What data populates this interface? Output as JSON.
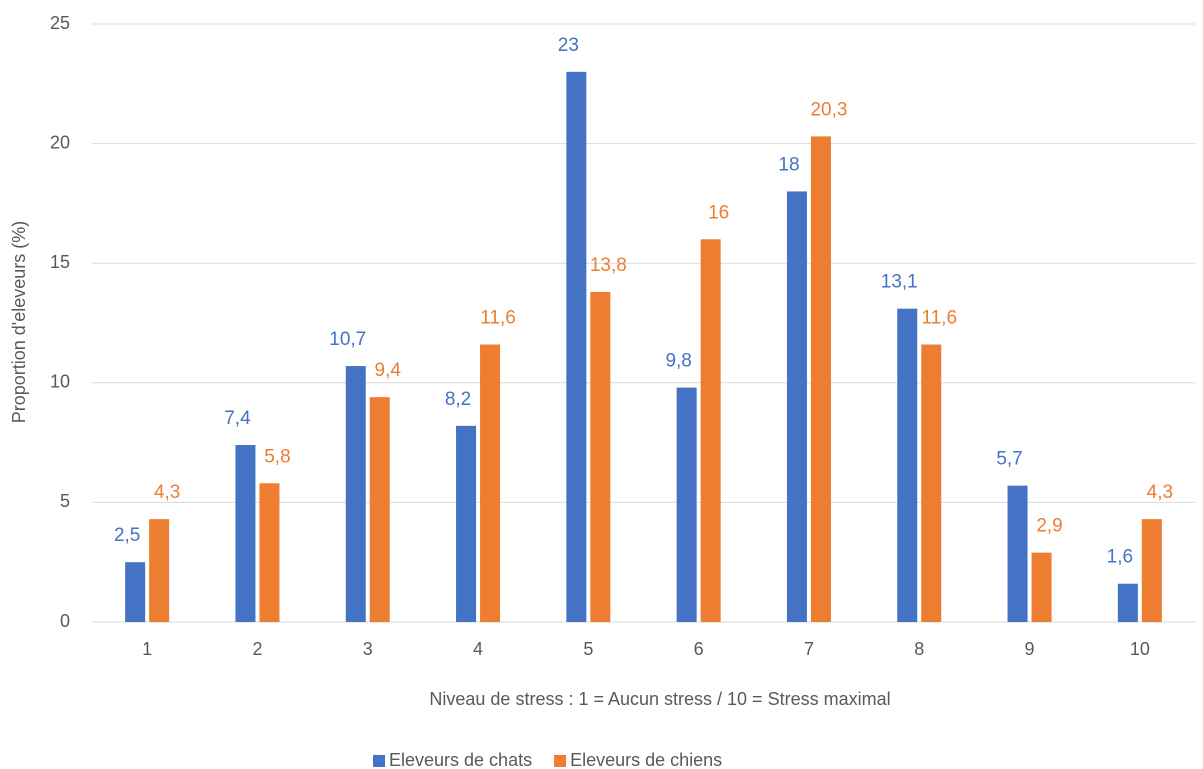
{
  "chart_data": {
    "type": "bar",
    "x_label": "Niveau de stress : 1 = Aucun stress / 10 = Stress maximal",
    "y_label": "Proportion d'eleveurs (%)",
    "categories": [
      "1",
      "2",
      "3",
      "4",
      "5",
      "6",
      "7",
      "8",
      "9",
      "10"
    ],
    "series": [
      {
        "name": "Eleveurs de chats",
        "color": "#4472c4",
        "values": [
          2.5,
          7.4,
          10.7,
          8.2,
          23,
          9.8,
          18,
          13.1,
          5.7,
          1.6
        ],
        "value_labels": [
          "2,5",
          "7,4",
          "10,7",
          "8,2",
          "23",
          "9,8",
          "18",
          "13,1",
          "5,7",
          "1,6"
        ]
      },
      {
        "name": "Eleveurs de chiens",
        "color": "#ed7d31",
        "values": [
          4.3,
          5.8,
          9.4,
          11.6,
          13.8,
          16,
          20.3,
          11.6,
          2.9,
          4.3
        ],
        "value_labels": [
          "4,3",
          "5,8",
          "9,4",
          "11,6",
          "13,8",
          "16",
          "20,3",
          "11,6",
          "2,9",
          "4,3"
        ]
      }
    ],
    "ylim": [
      0,
      25
    ],
    "yticks": [
      0,
      5,
      10,
      15,
      20,
      25
    ],
    "grid": true,
    "legend": "bottom"
  }
}
